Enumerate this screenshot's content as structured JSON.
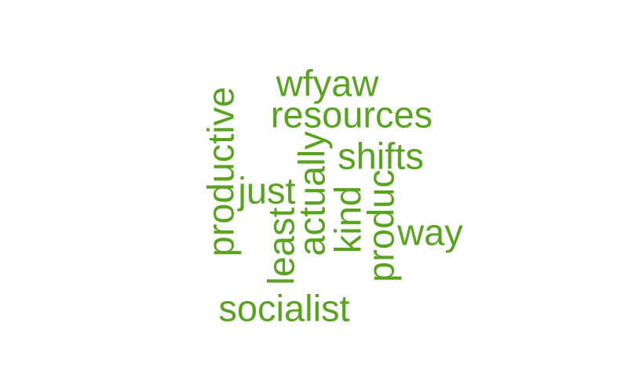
{
  "word_cloud": {
    "color": "#5aa321",
    "words": [
      {
        "text": "wfyaw",
        "orientation": "horizontal"
      },
      {
        "text": "resources",
        "orientation": "horizontal"
      },
      {
        "text": "productive",
        "orientation": "vertical"
      },
      {
        "text": "shifts",
        "orientation": "horizontal"
      },
      {
        "text": "actually",
        "orientation": "vertical"
      },
      {
        "text": "just",
        "orientation": "horizontal"
      },
      {
        "text": "produc",
        "orientation": "vertical"
      },
      {
        "text": "kind",
        "orientation": "vertical"
      },
      {
        "text": "least",
        "orientation": "vertical"
      },
      {
        "text": "way",
        "orientation": "horizontal"
      },
      {
        "text": "socialist",
        "orientation": "horizontal"
      }
    ]
  }
}
